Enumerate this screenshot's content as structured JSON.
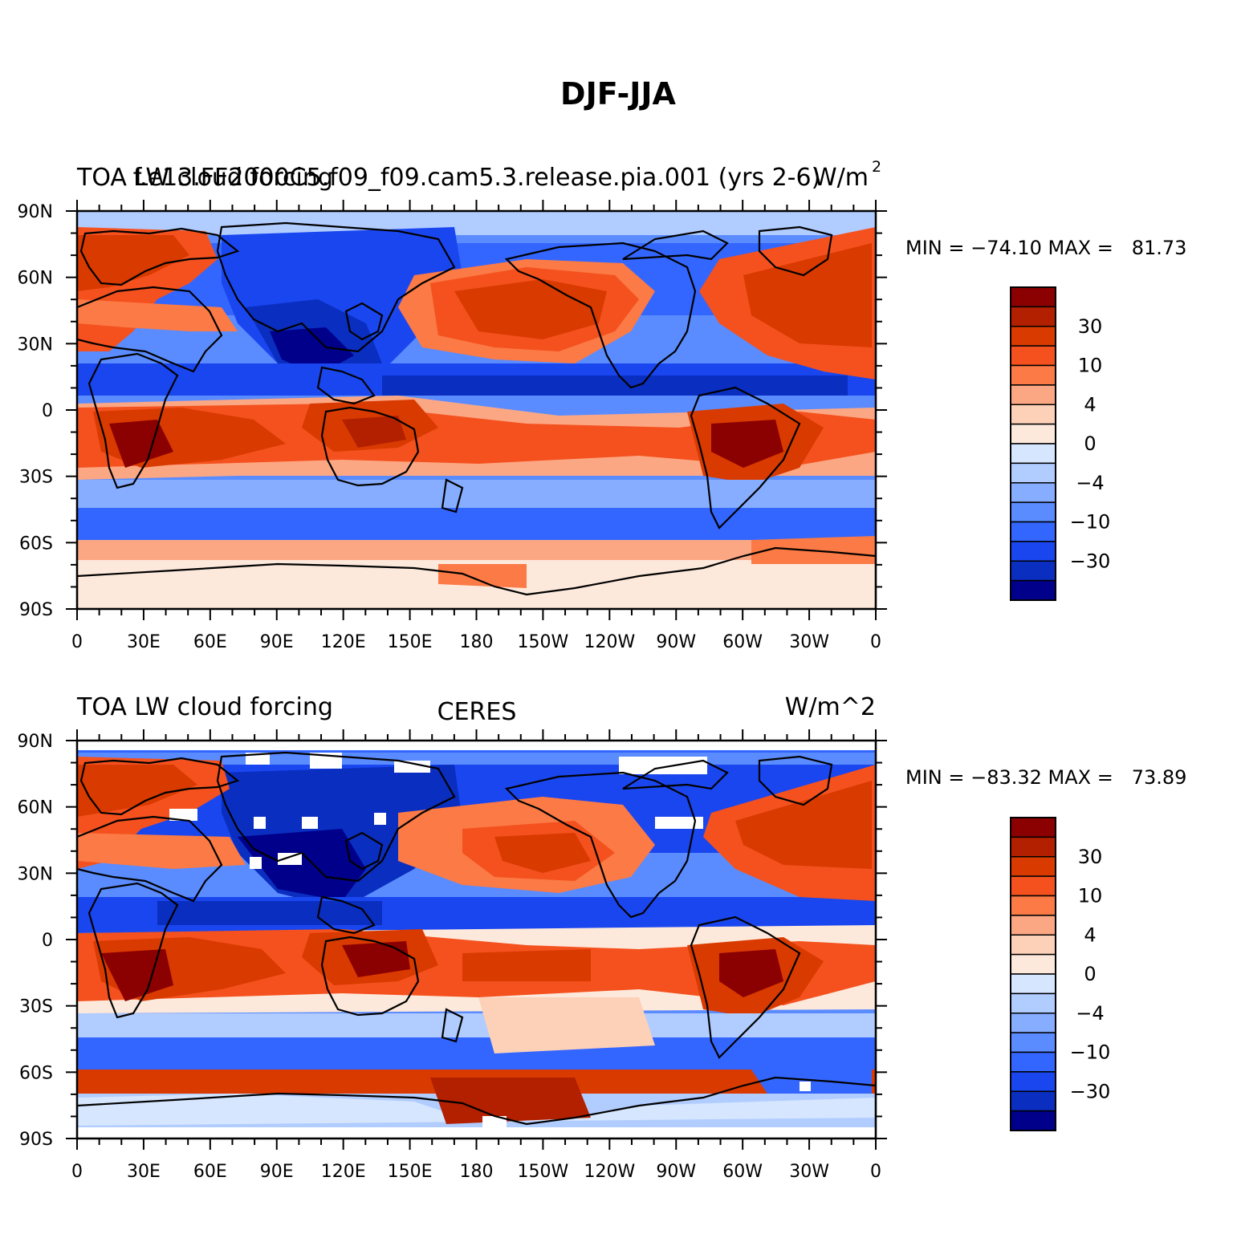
{
  "figure": {
    "title": "DJF-JJA"
  },
  "panels": [
    {
      "left_title": "TOA LW cloud forcing",
      "center_title": "f.e13.FF2000C5.f09_f09.cam5.3.release.pia.001 (yrs 2-6)",
      "units": "W/m",
      "units_sup": "2",
      "min_label": "MIN = −74.10 MAX =   81.73"
    },
    {
      "left_title": "TOA LW cloud forcing",
      "center_title": "CERES",
      "units": "W/m^2",
      "units_sup": "",
      "min_label": "MIN = −83.32 MAX =   73.89"
    }
  ],
  "axes": {
    "lat_labels": [
      "90N",
      "60N",
      "30N",
      "0",
      "30S",
      "60S",
      "90S"
    ],
    "lon_labels": [
      "0",
      "30E",
      "60E",
      "90E",
      "120E",
      "150E",
      "180",
      "150W",
      "120W",
      "90W",
      "60W",
      "30W",
      "0"
    ]
  },
  "colorbar": {
    "colors": [
      "#8b0000",
      "#b22000",
      "#d93a00",
      "#f4511e",
      "#fb7a45",
      "#fca784",
      "#fdd0b8",
      "#fde9dc",
      "#d6e6ff",
      "#b1ccff",
      "#86adff",
      "#5a8cff",
      "#3366ff",
      "#1a46f0",
      "#0a2ec0",
      "#00008b"
    ],
    "labels": [
      "30",
      "10",
      "4",
      "0",
      "−4",
      "−10",
      "−30"
    ]
  }
}
